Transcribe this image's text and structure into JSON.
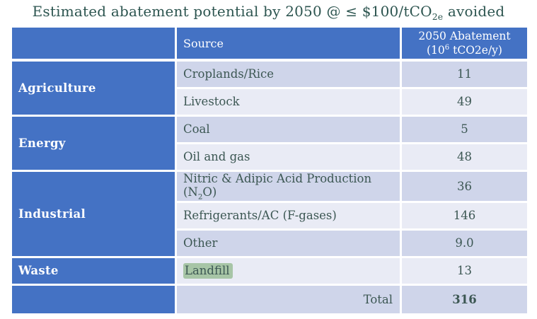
{
  "title": {
    "pre": "Estimated abatement potential by 2050 @ ≤ $100/tCO",
    "sub": "2e",
    "post": " avoided"
  },
  "table": {
    "header": {
      "category": "",
      "source": "Source",
      "abatement": {
        "line1": "2050 Abatement",
        "line2_pre": "(10",
        "line2_sup": "6",
        "line2_post": " tCO2e/y)"
      }
    },
    "groups": [
      {
        "category": "Agriculture"
      },
      {
        "category": "Energy"
      },
      {
        "category": "Industrial"
      },
      {
        "category": "Waste"
      }
    ],
    "rows": [
      {
        "source": "Croplands/Rice",
        "value": "11"
      },
      {
        "source": "Livestock",
        "value": "49"
      },
      {
        "source": "Coal",
        "value": "5"
      },
      {
        "source": "Oil and gas",
        "value": "48"
      },
      {
        "source_pre": "Nitric & Adipic Acid Production (N",
        "source_sub": "2",
        "source_post": "O)",
        "value": "36"
      },
      {
        "source": "Refrigerants/AC (F-gases)",
        "value": "146"
      },
      {
        "source": "Other",
        "value": "9.0"
      },
      {
        "source": "Landfill",
        "value": "13",
        "highlighted": true
      }
    ],
    "total": {
      "label": "Total",
      "value": "316"
    }
  },
  "colors": {
    "header_blue": "#4472c4",
    "band_dark": "#cfd5ea",
    "band_light": "#e9ebf5",
    "text_teal": "#3c5753",
    "title_teal": "#2d5550",
    "landfill_highlight_green": "#a7c5a6",
    "grid_white": "#ffffff"
  }
}
